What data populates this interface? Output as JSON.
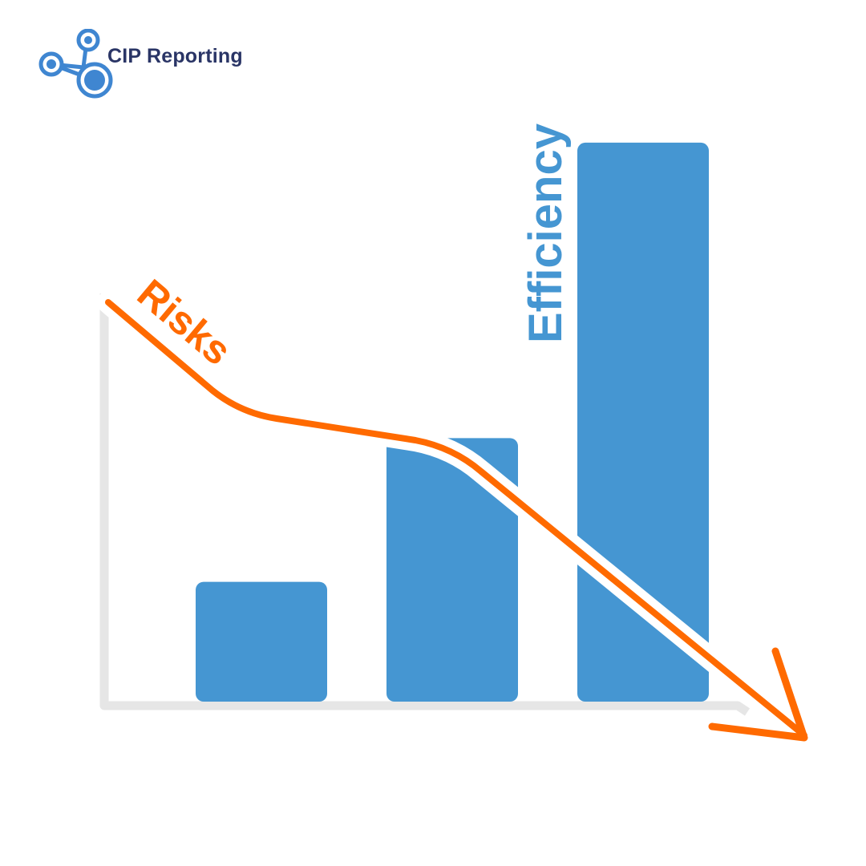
{
  "brand": {
    "name": "CIP Reporting",
    "logo_icon": "network-nodes-icon",
    "colors": {
      "text": "#2a3566",
      "icon": "#3f86d1"
    }
  },
  "chart_data": {
    "type": "bar",
    "title": "",
    "xlabel": "",
    "ylabel": "",
    "categories": [
      "",
      "",
      ""
    ],
    "series": [
      {
        "name": "Efficiency",
        "values": [
          30,
          66,
          140
        ],
        "color": "#4596d2"
      }
    ],
    "overlay": {
      "type": "line",
      "name": "Risks",
      "trend": "decreasing",
      "values": [
        95,
        66,
        60,
        33,
        -5
      ],
      "color": "#ff6a00"
    },
    "ylim": [
      -10,
      145
    ],
    "grid": false,
    "legend": "none",
    "axis_color": "#e6e6e6"
  }
}
